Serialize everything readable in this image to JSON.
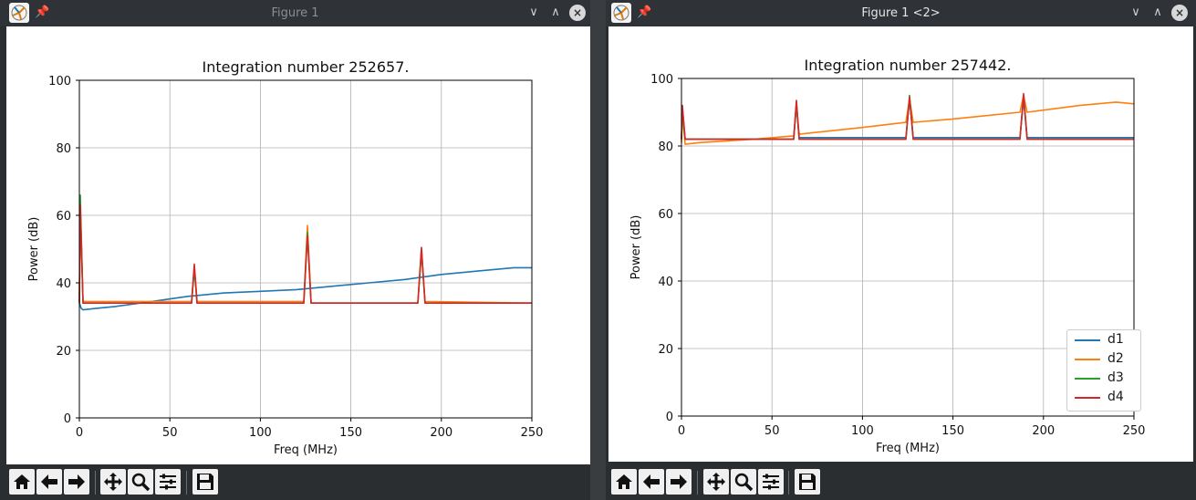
{
  "windows": [
    {
      "title": "Figure 1",
      "controls": {
        "minimize": "∨",
        "maximize": "∧",
        "close": "×"
      },
      "plot": {
        "title": "Integration number 252657.",
        "xlabel": "Freq (MHz)",
        "ylabel": "Power (dB)",
        "xlim": [
          0,
          250
        ],
        "ylim": [
          0,
          100
        ],
        "xticks": [
          "0",
          "50",
          "100",
          "150",
          "200",
          "250"
        ],
        "yticks": [
          "0",
          "20",
          "40",
          "60",
          "80",
          "100"
        ],
        "grid": true,
        "legend": null
      }
    },
    {
      "title": "Figure 1 <2>",
      "controls": {
        "minimize": "∨",
        "maximize": "∧",
        "close": "×"
      },
      "plot": {
        "title": "Integration number 257442.",
        "xlabel": "Freq (MHz)",
        "ylabel": "Power (dB)",
        "xlim": [
          0,
          250
        ],
        "ylim": [
          0,
          100
        ],
        "xticks": [
          "0",
          "50",
          "100",
          "150",
          "200",
          "250"
        ],
        "yticks": [
          "0",
          "20",
          "40",
          "60",
          "80",
          "100"
        ],
        "grid": true,
        "legend": [
          "d1",
          "d2",
          "d3",
          "d4"
        ],
        "legend_position": "lower-right"
      }
    }
  ],
  "toolbar": {
    "icons": [
      "home-icon",
      "back-icon",
      "forward-icon",
      "pan-icon",
      "zoom-icon",
      "configure-subplots-icon",
      "save-icon"
    ]
  },
  "colors": {
    "d1": "#1f77b4",
    "d2": "#ff7f0e",
    "d3": "#2ca02c",
    "d4": "#d62728"
  },
  "chart_data": [
    {
      "type": "line",
      "title": "Integration number 252657.",
      "xlabel": "Freq (MHz)",
      "ylabel": "Power (dB)",
      "xlim": [
        0,
        250
      ],
      "ylim": [
        0,
        100
      ],
      "grid": true,
      "series": [
        {
          "x": [
            0,
            1,
            2,
            10,
            20,
            40,
            60,
            80,
            100,
            120,
            140,
            160,
            180,
            200,
            220,
            240,
            250
          ],
          "values": [
            34,
            32.5,
            32,
            32.5,
            33,
            34.5,
            36,
            37,
            37.5,
            38,
            39,
            40,
            41,
            42.5,
            43.5,
            44.5,
            44.5
          ]
        },
        {
          "x": [
            0,
            0.5,
            2,
            40,
            62,
            63.5,
            65,
            124,
            126,
            128,
            187,
            189,
            191,
            250
          ],
          "values": [
            34,
            62,
            34.5,
            34.5,
            34.5,
            45,
            34.5,
            34.5,
            57,
            34,
            34,
            50,
            34.5,
            34
          ]
        },
        {
          "x": [
            0,
            0.5,
            2,
            40,
            62,
            63.5,
            65,
            124,
            126,
            128,
            187,
            189,
            191,
            250
          ],
          "values": [
            34,
            66,
            34,
            34,
            34,
            44,
            34,
            34,
            55,
            34,
            34,
            49,
            34,
            34
          ]
        },
        {
          "x": [
            0,
            0.5,
            2,
            40,
            62,
            63.5,
            65,
            124,
            126,
            128,
            187,
            189,
            191,
            250
          ],
          "values": [
            34,
            63,
            34,
            34,
            34,
            45.5,
            34,
            34,
            54,
            34,
            34,
            50.5,
            34,
            34
          ]
        }
      ]
    },
    {
      "type": "line",
      "title": "Integration number 257442.",
      "xlabel": "Freq (MHz)",
      "ylabel": "Power (dB)",
      "xlim": [
        0,
        250
      ],
      "ylim": [
        0,
        100
      ],
      "grid": true,
      "series": [
        {
          "name": "d1",
          "x": [
            0,
            0.5,
            2,
            62,
            63.5,
            65,
            124,
            126,
            128,
            187,
            189,
            191,
            250
          ],
          "values": [
            82,
            91,
            82,
            82,
            92,
            82.5,
            82.5,
            94,
            82.5,
            82.5,
            94,
            82.5,
            82.5
          ]
        },
        {
          "name": "d2",
          "x": [
            0,
            0.5,
            2,
            10,
            40,
            62,
            63.5,
            65,
            100,
            124,
            126,
            128,
            150,
            187,
            189,
            191,
            220,
            240,
            250
          ],
          "values": [
            81,
            90,
            80.5,
            81,
            82,
            83,
            92,
            83.5,
            85.5,
            87,
            94,
            87,
            88,
            90,
            95,
            90,
            92,
            93,
            92.5
          ]
        },
        {
          "name": "d3",
          "x": [
            0,
            0.5,
            2,
            62,
            63.5,
            65,
            124,
            126,
            128,
            187,
            189,
            191,
            250
          ],
          "values": [
            82,
            91,
            82,
            82,
            93,
            82,
            82,
            95,
            82,
            82,
            94.5,
            82,
            82
          ]
        },
        {
          "name": "d4",
          "x": [
            0,
            0.5,
            2,
            62,
            63.5,
            65,
            124,
            126,
            128,
            187,
            189,
            191,
            250
          ],
          "values": [
            82,
            92,
            82,
            82,
            93.5,
            82,
            82,
            94.5,
            82,
            82,
            95.5,
            82,
            82
          ]
        }
      ]
    }
  ]
}
